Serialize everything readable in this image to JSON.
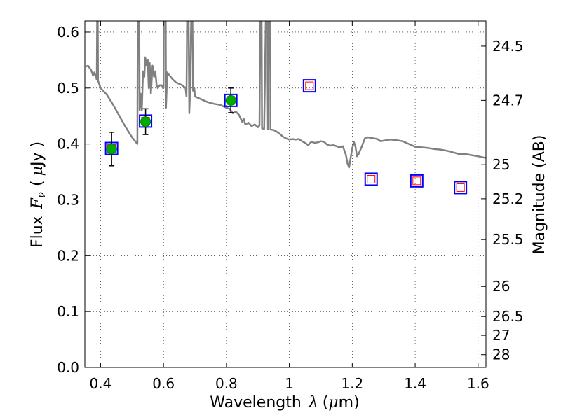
{
  "chart_data": {
    "type": "scatter",
    "title": "",
    "xlabel": {
      "text": "Wavelength",
      "symbol": "λ",
      "unit": "(",
      "unit_mu": "μ",
      "unit_end": "m)"
    },
    "ylabel": {
      "text": "Flux",
      "symbol": "F",
      "sub": "ν",
      "unit_open": "(",
      "unit_mu": "μ",
      "unit_end": "Jy )"
    },
    "y2label": "Magnitude (AB)",
    "xlim": [
      0.35,
      1.625
    ],
    "ylim": [
      0.0,
      0.62
    ],
    "grid": true,
    "x_ticks": [
      {
        "value": 0.4,
        "label": "0.4"
      },
      {
        "value": 0.6,
        "label": "0.6"
      },
      {
        "value": 0.8,
        "label": "0.8"
      },
      {
        "value": 1.0,
        "label": "1"
      },
      {
        "value": 1.2,
        "label": "1.2"
      },
      {
        "value": 1.4,
        "label": "1.4"
      },
      {
        "value": 1.6,
        "label": "1.6"
      }
    ],
    "y_ticks": [
      {
        "value": 0.0,
        "label": "0.0"
      },
      {
        "value": 0.1,
        "label": "0.1"
      },
      {
        "value": 0.2,
        "label": "0.2"
      },
      {
        "value": 0.3,
        "label": "0.3"
      },
      {
        "value": 0.4,
        "label": "0.4"
      },
      {
        "value": 0.5,
        "label": "0.5"
      },
      {
        "value": 0.6,
        "label": "0.6"
      }
    ],
    "mag_ticks": [
      {
        "label": "24.5",
        "flux": 0.575
      },
      {
        "label": "24.7",
        "flux": 0.478
      },
      {
        "label": "25",
        "flux": 0.363
      },
      {
        "label": "25.2",
        "flux": 0.302
      },
      {
        "label": "25.5",
        "flux": 0.229
      },
      {
        "label": "26",
        "flux": 0.145
      },
      {
        "label": "26.5",
        "flux": 0.0912
      },
      {
        "label": "27",
        "flux": 0.0575
      },
      {
        "label": "28",
        "flux": 0.0229
      }
    ],
    "series": [
      {
        "name": "model-spectrum",
        "kind": "line",
        "color": "#808080",
        "points": [
          [
            0.352,
            0.538
          ],
          [
            0.36,
            0.54
          ],
          [
            0.37,
            0.532
          ],
          [
            0.376,
            0.522
          ],
          [
            0.38,
            0.528
          ],
          [
            0.385,
            0.52
          ],
          [
            0.388,
            0.515
          ],
          [
            0.389,
            0.62
          ],
          [
            0.391,
            0.62
          ],
          [
            0.392,
            0.513
          ],
          [
            0.4,
            0.5
          ],
          [
            0.42,
            0.488
          ],
          [
            0.44,
            0.47
          ],
          [
            0.46,
            0.45
          ],
          [
            0.48,
            0.43
          ],
          [
            0.5,
            0.412
          ],
          [
            0.51,
            0.405
          ],
          [
            0.517,
            0.4
          ],
          [
            0.518,
            0.62
          ],
          [
            0.523,
            0.62
          ],
          [
            0.524,
            0.46
          ],
          [
            0.527,
            0.49
          ],
          [
            0.531,
            0.46
          ],
          [
            0.535,
            0.53
          ],
          [
            0.539,
            0.52
          ],
          [
            0.542,
            0.555
          ],
          [
            0.546,
            0.54
          ],
          [
            0.55,
            0.55
          ],
          [
            0.553,
            0.5
          ],
          [
            0.556,
            0.545
          ],
          [
            0.56,
            0.49
          ],
          [
            0.565,
            0.54
          ],
          [
            0.57,
            0.52
          ],
          [
            0.574,
            0.53
          ],
          [
            0.578,
            0.505
          ],
          [
            0.582,
            0.5
          ],
          [
            0.588,
            0.505
          ],
          [
            0.594,
            0.505
          ],
          [
            0.598,
            0.5
          ],
          [
            0.6,
            0.5
          ],
          [
            0.601,
            0.62
          ],
          [
            0.607,
            0.62
          ],
          [
            0.608,
            0.465
          ],
          [
            0.612,
            0.528
          ],
          [
            0.62,
            0.522
          ],
          [
            0.63,
            0.515
          ],
          [
            0.64,
            0.51
          ],
          [
            0.66,
            0.505
          ],
          [
            0.67,
            0.5
          ],
          [
            0.673,
            0.485
          ],
          [
            0.675,
            0.62
          ],
          [
            0.679,
            0.62
          ],
          [
            0.68,
            0.62
          ],
          [
            0.682,
            0.455
          ],
          [
            0.685,
            0.5
          ],
          [
            0.688,
            0.62
          ],
          [
            0.692,
            0.62
          ],
          [
            0.694,
            0.495
          ],
          [
            0.698,
            0.5
          ],
          [
            0.7,
            0.485
          ],
          [
            0.72,
            0.48
          ],
          [
            0.74,
            0.475
          ],
          [
            0.76,
            0.472
          ],
          [
            0.78,
            0.47
          ],
          [
            0.8,
            0.465
          ],
          [
            0.81,
            0.463
          ],
          [
            0.82,
            0.455
          ],
          [
            0.83,
            0.458
          ],
          [
            0.84,
            0.452
          ],
          [
            0.85,
            0.44
          ],
          [
            0.855,
            0.445
          ],
          [
            0.86,
            0.435
          ],
          [
            0.87,
            0.438
          ],
          [
            0.88,
            0.432
          ],
          [
            0.89,
            0.435
          ],
          [
            0.9,
            0.43
          ],
          [
            0.905,
            0.433
          ],
          [
            0.908,
            0.62
          ],
          [
            0.912,
            0.62
          ],
          [
            0.913,
            0.428
          ],
          [
            0.92,
            0.427
          ],
          [
            0.925,
            0.62
          ],
          [
            0.93,
            0.62
          ],
          [
            0.932,
            0.426
          ],
          [
            0.935,
            0.62
          ],
          [
            0.939,
            0.62
          ],
          [
            0.94,
            0.426
          ],
          [
            0.95,
            0.425
          ],
          [
            0.96,
            0.422
          ],
          [
            0.97,
            0.418
          ],
          [
            0.98,
            0.413
          ],
          [
            0.99,
            0.41
          ],
          [
            1.0,
            0.408
          ],
          [
            1.01,
            0.409
          ],
          [
            1.02,
            0.408
          ],
          [
            1.03,
            0.409
          ],
          [
            1.04,
            0.405
          ],
          [
            1.05,
            0.402
          ],
          [
            1.06,
            0.398
          ],
          [
            1.07,
            0.404
          ],
          [
            1.08,
            0.402
          ],
          [
            1.09,
            0.403
          ],
          [
            1.1,
            0.405
          ],
          [
            1.11,
            0.404
          ],
          [
            1.12,
            0.399
          ],
          [
            1.13,
            0.397
          ],
          [
            1.14,
            0.398
          ],
          [
            1.15,
            0.396
          ],
          [
            1.16,
            0.394
          ],
          [
            1.17,
            0.396
          ],
          [
            1.18,
            0.38
          ],
          [
            1.185,
            0.365
          ],
          [
            1.19,
            0.358
          ],
          [
            1.195,
            0.376
          ],
          [
            1.2,
            0.392
          ],
          [
            1.205,
            0.404
          ],
          [
            1.21,
            0.396
          ],
          [
            1.215,
            0.378
          ],
          [
            1.22,
            0.382
          ],
          [
            1.23,
            0.395
          ],
          [
            1.24,
            0.41
          ],
          [
            1.25,
            0.412
          ],
          [
            1.26,
            0.411
          ],
          [
            1.27,
            0.41
          ],
          [
            1.28,
            0.409
          ],
          [
            1.29,
            0.405
          ],
          [
            1.3,
            0.406
          ],
          [
            1.32,
            0.408
          ],
          [
            1.34,
            0.407
          ],
          [
            1.36,
            0.405
          ],
          [
            1.38,
            0.4
          ],
          [
            1.4,
            0.395
          ],
          [
            1.42,
            0.394
          ],
          [
            1.44,
            0.393
          ],
          [
            1.46,
            0.391
          ],
          [
            1.48,
            0.39
          ],
          [
            1.5,
            0.388
          ],
          [
            1.52,
            0.385
          ],
          [
            1.54,
            0.382
          ],
          [
            1.56,
            0.382
          ],
          [
            1.58,
            0.38
          ],
          [
            1.6,
            0.378
          ],
          [
            1.625,
            0.375
          ]
        ]
      },
      {
        "name": "observed-photometry",
        "kind": "points",
        "marker": "circle",
        "color": "#00aa00",
        "edge_color": "#008800",
        "points": [
          {
            "x": 0.435,
            "y": 0.391,
            "yerr_lo": 0.03,
            "yerr_hi": 0.03
          },
          {
            "x": 0.543,
            "y": 0.44,
            "yerr_lo": 0.023,
            "yerr_hi": 0.023
          },
          {
            "x": 0.814,
            "y": 0.478,
            "yerr_lo": 0.022,
            "yerr_hi": 0.022
          }
        ]
      },
      {
        "name": "model-photometry",
        "kind": "points",
        "marker": "square",
        "outer_color": "#0000ff",
        "inner_color": "#ff0000",
        "points": [
          {
            "x": 0.435,
            "y": 0.392
          },
          {
            "x": 0.543,
            "y": 0.441
          },
          {
            "x": 0.814,
            "y": 0.478
          },
          {
            "x": 1.064,
            "y": 0.504
          },
          {
            "x": 1.26,
            "y": 0.337
          },
          {
            "x": 1.405,
            "y": 0.334
          },
          {
            "x": 1.544,
            "y": 0.322
          }
        ]
      }
    ]
  }
}
